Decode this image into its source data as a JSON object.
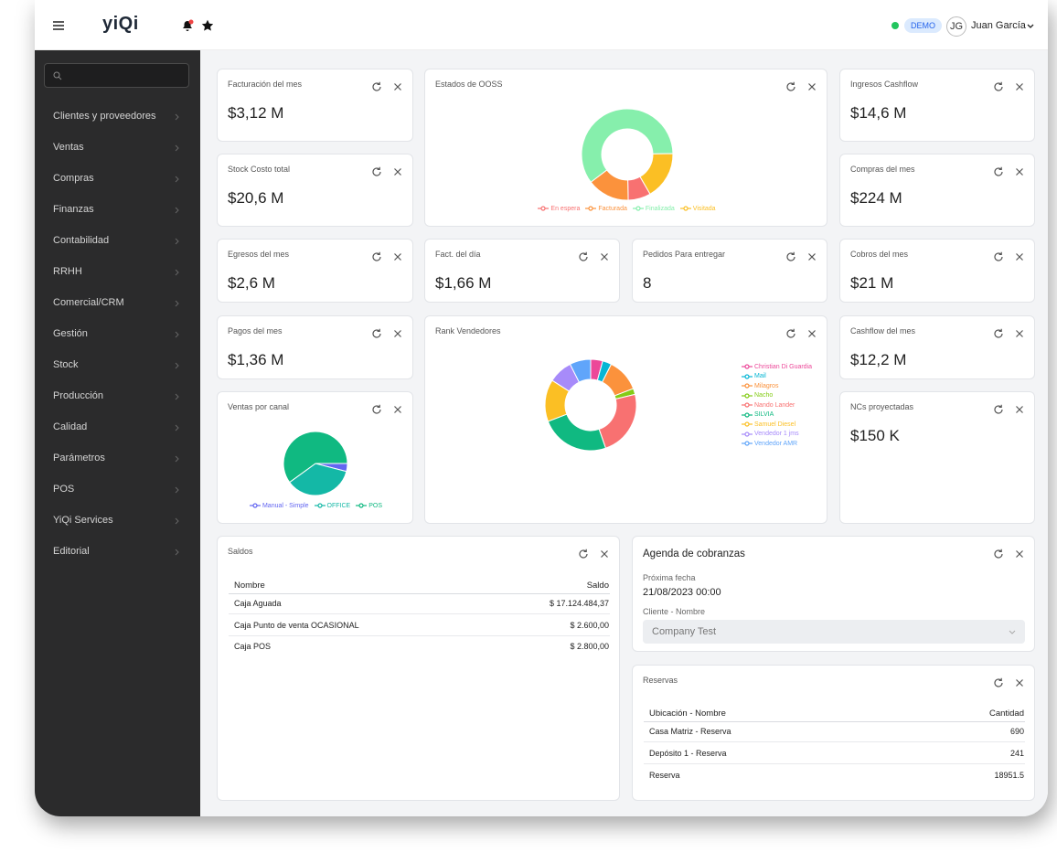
{
  "header": {
    "logo": "yiQi",
    "environment": "DEMO",
    "user_initials": "JG",
    "user_name": "Juan García"
  },
  "sidebar": {
    "menu": [
      "Clientes y proveedores",
      "Ventas",
      "Compras",
      "Finanzas",
      "Contabilidad",
      "RRHH",
      "Comercial/CRM",
      "Gestión",
      "Stock",
      "Producción",
      "Calidad",
      "Parámetros",
      "POS",
      "YiQi Services",
      "Editorial"
    ]
  },
  "kpis": [
    {
      "title": "Facturación del mes",
      "value": "$3,12 M"
    },
    {
      "title": "Ingresos Cashflow",
      "value": "$14,6 M"
    },
    {
      "title": "Stock Costo total",
      "value": "$20,6 M"
    },
    {
      "title": "Compras del mes",
      "value": "$224 M"
    },
    {
      "title": "Egresos del mes",
      "value": "$2,6 M"
    },
    {
      "title": "Fact. del día",
      "value": "$1,66 M"
    },
    {
      "title": "Pedidos Para entregar",
      "value": 8
    },
    {
      "title": "Cobros del mes",
      "value": "$21 M"
    },
    {
      "title": "Pagos del mes",
      "value": "$1,36 M"
    },
    {
      "title": "Cashflow del mes",
      "value": "$12,2 M"
    },
    {
      "title": "NCs proyectadas",
      "value": "$150 K"
    }
  ],
  "charts": [
    {
      "title": "Estados de OOSS",
      "type": "donut",
      "series": [
        {
          "name": "En espera",
          "color": "#f87171",
          "value": 8
        },
        {
          "name": "Facturada",
          "color": "#fb923c",
          "value": 15
        },
        {
          "name": "Finalizada",
          "color": "#86efac",
          "value": 60
        },
        {
          "name": "Visitada",
          "color": "#fbbf24",
          "value": 17
        }
      ]
    },
    {
      "title": "Rank Vendedores",
      "type": "donut",
      "series": [
        {
          "name": "Christian Di Guardia",
          "color": "#ec4899",
          "value": 4
        },
        {
          "name": "Mail",
          "color": "#06b6d4",
          "value": 3
        },
        {
          "name": "Milagros",
          "color": "#fb923c",
          "value": 11
        },
        {
          "name": "Nacho",
          "color": "#84cc16",
          "value": 2
        },
        {
          "name": "Nando Lander",
          "color": "#f87171",
          "value": 22
        },
        {
          "name": "SILVIA",
          "color": "#10b981",
          "value": 23
        },
        {
          "name": "Samuel Diesel",
          "color": "#fbbf24",
          "value": 14
        },
        {
          "name": "Vendedor 1 jms",
          "color": "#a78bfa",
          "value": 8
        },
        {
          "name": "Vendedor AMR",
          "color": "#60a5fa",
          "value": 7
        }
      ]
    },
    {
      "title": "Ventas por canal",
      "type": "pie",
      "series": [
        {
          "name": "Manual - Simple",
          "color": "#6366f1",
          "value": 4
        },
        {
          "name": "OFFICE",
          "color": "#14b8a6",
          "value": 36
        },
        {
          "name": "POS",
          "color": "#10b981",
          "value": 60
        }
      ]
    }
  ],
  "saldos": {
    "title": "Saldos",
    "columns": [
      "Nombre",
      "Saldo"
    ],
    "rows": [
      [
        "Caja Aguada",
        "$ 17.124.484,37"
      ],
      [
        "Caja Punto de venta OCASIONAL",
        "$ 2.600,00"
      ],
      [
        "Caja POS",
        "$ 2.800,00"
      ]
    ]
  },
  "agenda": {
    "title": "Agenda de cobranzas",
    "fields": [
      {
        "label": "Próxima fecha",
        "value": "21/08/2023 00:00"
      },
      {
        "label": "Cliente - Nombre",
        "value": "Company Test"
      }
    ]
  },
  "reservas": {
    "title": "Reservas",
    "columns": [
      "Ubicación - Nombre",
      "Cantidad"
    ],
    "rows": [
      [
        "Casa Matriz - Reserva",
        690
      ],
      [
        "Depósito 1 - Reserva",
        241
      ],
      [
        "Reserva",
        18951.5
      ]
    ]
  }
}
